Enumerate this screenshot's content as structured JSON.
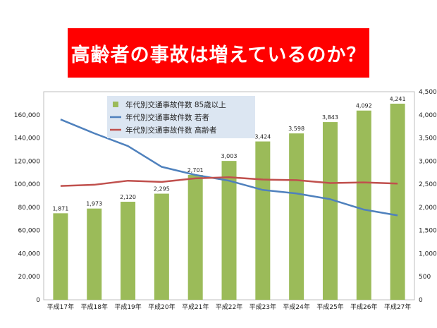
{
  "banner": {
    "title": "高齢者の事故は増えているのか？"
  },
  "chart_data": {
    "type": "bar",
    "categories": [
      "平成17年",
      "平成18年",
      "平成19年",
      "平成20年",
      "平成21年",
      "平成22年",
      "平成23年",
      "平成24年",
      "平成25年",
      "平成26年",
      "平成27年"
    ],
    "series": [
      {
        "name": "年代別交通事故件数 85歳以上",
        "kind": "bar",
        "axis": "right",
        "color": "#9bbb59",
        "values": [
          1871,
          1973,
          2120,
          2295,
          2701,
          3003,
          3424,
          3598,
          3843,
          4092,
          4241
        ],
        "labels": [
          "1,871",
          "1,973",
          "2,120",
          "2,295",
          "2,701",
          "3,003",
          "3,424",
          "3,598",
          "3,843",
          "4,092",
          "4,241"
        ]
      },
      {
        "name": "年代別交通事故件数 若者",
        "kind": "line",
        "axis": "left",
        "color": "#4f81bd",
        "values": [
          156000,
          144000,
          133000,
          115000,
          108000,
          103000,
          95000,
          92000,
          87000,
          78000,
          73000
        ]
      },
      {
        "name": "年代別交通事故件数 高齢者",
        "kind": "line",
        "axis": "left",
        "color": "#c0504d",
        "values": [
          98500,
          99500,
          103000,
          102000,
          105000,
          106000,
          104000,
          103500,
          101000,
          101500,
          100500
        ]
      }
    ],
    "ylim_left": [
      0,
      180000
    ],
    "ylim_right": [
      0,
      4500
    ],
    "yticks_left": [
      "0",
      "20,000",
      "40,000",
      "60,000",
      "80,000",
      "100,000",
      "120,000",
      "140,000",
      "160,000"
    ],
    "yticks_right": [
      "0",
      "500",
      "1,000",
      "1,500",
      "2,000",
      "2,500",
      "3,000",
      "3,500",
      "4,000",
      "4,500"
    ],
    "legend_position": "top-left-inside",
    "grid": false
  }
}
